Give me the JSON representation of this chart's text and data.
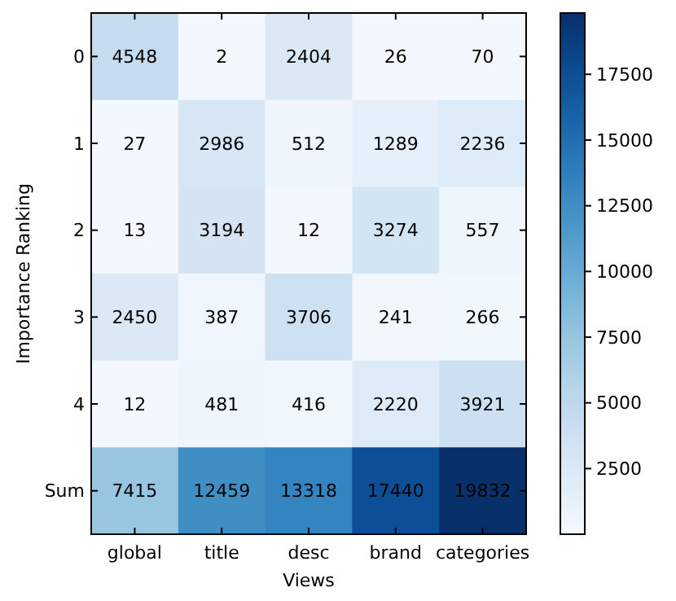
{
  "chart_data": {
    "type": "heatmap",
    "xlabel": "Views",
    "ylabel": "Importance Ranking",
    "categories": [
      "global",
      "title",
      "desc",
      "brand",
      "categories"
    ],
    "y_categories": [
      "0",
      "1",
      "2",
      "3",
      "4",
      "Sum"
    ],
    "cells": [
      [
        4548,
        2,
        2404,
        26,
        70
      ],
      [
        27,
        2986,
        512,
        1289,
        2236
      ],
      [
        13,
        3194,
        12,
        3274,
        557
      ],
      [
        2450,
        387,
        3706,
        241,
        266
      ],
      [
        12,
        481,
        416,
        2220,
        3921
      ],
      [
        7415,
        12459,
        13318,
        17440,
        19832
      ]
    ],
    "data_labels": true,
    "clim": [
      2,
      19832
    ],
    "cticks": [
      2500,
      5000,
      7500,
      10000,
      12500,
      15000,
      17500
    ]
  }
}
